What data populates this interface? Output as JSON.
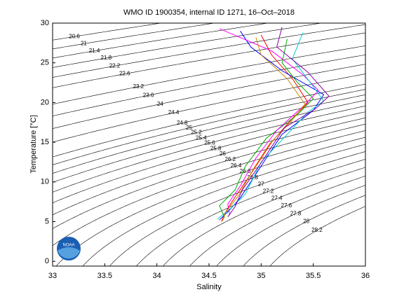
{
  "chart_data": {
    "type": "ts-diagram",
    "title": "WMO ID 1900354, internal ID 1271, 16–Oct–2018",
    "x_label": "Salinity",
    "y_label": "Temperature [°C]",
    "xlim": [
      33,
      36
    ],
    "ylim": [
      -0.6,
      30
    ],
    "xticks": [
      33,
      33.5,
      34,
      34.5,
      35,
      35.5,
      36
    ],
    "yticks": [
      0,
      5,
      10,
      15,
      20,
      25,
      30
    ],
    "contour_levels": [
      20.6,
      21,
      21.4,
      21.8,
      22.2,
      22.6,
      23.2,
      23.6,
      24,
      24.4,
      24.8,
      25,
      25.2,
      25.4,
      25.6,
      25.8,
      26,
      26.2,
      26.4,
      26.6,
      26.8,
      27,
      27.2,
      27.4,
      27.6,
      27.8,
      28,
      28.2
    ],
    "logo_text": "NOAA",
    "series": [
      {
        "color": "#ff0000",
        "x": [
          34.62,
          34.65,
          34.72,
          34.9,
          35.1,
          35.3,
          35.45,
          35.3,
          35.1,
          35.0
        ],
        "values": [
          5,
          6,
          7.5,
          11,
          15,
          18,
          20,
          23,
          26,
          28.5
        ]
      },
      {
        "color": "#0000ff",
        "x": [
          34.6,
          34.7,
          34.8,
          35.0,
          35.2,
          35.5,
          35.6,
          35.2,
          34.9,
          34.8
        ],
        "values": [
          5.2,
          6.5,
          8,
          12,
          16,
          19,
          21,
          24,
          27,
          29
        ]
      },
      {
        "color": "#00aa00",
        "x": [
          34.65,
          34.6,
          34.75,
          34.85,
          35.05,
          35.35,
          35.5,
          35.35,
          35.2,
          35.25
        ],
        "values": [
          5.5,
          7,
          9,
          12,
          15.5,
          18.5,
          20.5,
          22.5,
          25,
          28
        ]
      },
      {
        "color": "#ff00ff",
        "x": [
          34.7,
          34.68,
          34.8,
          34.95,
          35.15,
          35.4,
          35.55,
          35.4,
          35.1,
          34.6
        ],
        "values": [
          5.8,
          7.2,
          9.5,
          13,
          16.5,
          19.5,
          21.5,
          23.5,
          26.5,
          29.3
        ]
      },
      {
        "color": "#00cccc",
        "x": [
          34.58,
          34.72,
          34.85,
          35.0,
          35.25,
          35.45,
          35.6,
          35.5,
          35.3,
          35.4
        ],
        "values": [
          5.3,
          6.8,
          8.5,
          12.5,
          16,
          18.8,
          20.2,
          22,
          25.5,
          28.8
        ]
      },
      {
        "color": "#cc8800",
        "x": [
          34.63,
          34.66,
          34.78,
          34.92,
          35.08,
          35.28,
          35.42,
          35.25,
          35.0,
          34.95
        ],
        "values": [
          5.1,
          6.2,
          8.2,
          11.5,
          14.8,
          17.5,
          19.8,
          23,
          26,
          28.2
        ]
      },
      {
        "color": "#8800aa",
        "x": [
          34.68,
          34.75,
          34.82,
          35.02,
          35.22,
          35.52,
          35.65,
          35.45,
          35.15,
          35.2
        ],
        "values": [
          5.6,
          6.9,
          9,
          12.8,
          16.8,
          19.2,
          20.8,
          23.8,
          27,
          29.5
        ]
      }
    ]
  }
}
